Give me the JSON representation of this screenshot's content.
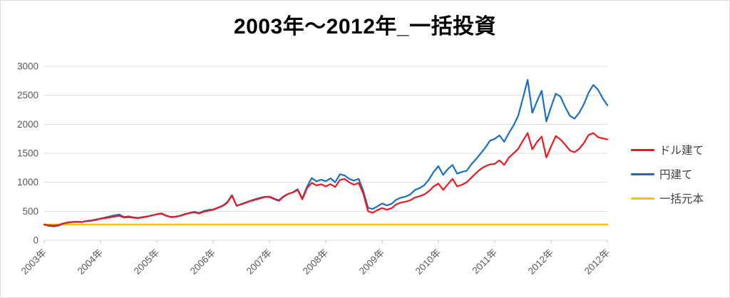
{
  "chart_data": {
    "type": "line",
    "title": "2003年～2012年_一括投資",
    "x_description": "monthly values, Jan 2003 - Dec 2012",
    "y_axis": {
      "ticks": [
        0,
        500,
        1000,
        1500,
        2000,
        2500,
        3000
      ],
      "range": [
        0,
        3000
      ]
    },
    "x_axis": {
      "tick_labels": [
        "2003年",
        "2004年",
        "2005年",
        "2006年",
        "2007年",
        "2008年",
        "2009年",
        "2010年",
        "2011年",
        "2012年",
        "2012年"
      ]
    },
    "grid": "horizontal",
    "legend": {
      "position": "right"
    },
    "colors": {
      "gridline": "#d9d9d9",
      "tick": "#bfbfbf",
      "axis_text": "#595959",
      "title_text": "#000000",
      "legend_text": "#404040"
    },
    "series": [
      {
        "name": "ドル建て",
        "color": "#ea1a20",
        "width": 2.2,
        "values": [
          270,
          258,
          252,
          262,
          290,
          308,
          315,
          320,
          312,
          330,
          336,
          350,
          370,
          382,
          395,
          408,
          420,
          392,
          400,
          388,
          380,
          395,
          408,
          428,
          450,
          462,
          425,
          398,
          403,
          420,
          448,
          468,
          482,
          462,
          492,
          512,
          525,
          558,
          590,
          648,
          768,
          598,
          618,
          648,
          678,
          700,
          722,
          744,
          752,
          718,
          688,
          758,
          802,
          825,
          868,
          705,
          900,
          990,
          945,
          965,
          930,
          968,
          918,
          1040,
          1058,
          998,
          958,
          988,
          798,
          498,
          474,
          520,
          555,
          528,
          552,
          618,
          650,
          665,
          690,
          738,
          760,
          790,
          850,
          930,
          978,
          868,
          968,
          1058,
          928,
          958,
          998,
          1078,
          1158,
          1228,
          1278,
          1308,
          1318,
          1378,
          1298,
          1428,
          1498,
          1578,
          1718,
          1848,
          1568,
          1698,
          1788,
          1428,
          1618,
          1798,
          1738,
          1648,
          1548,
          1518,
          1578,
          1678,
          1818,
          1848,
          1778,
          1758,
          1738
        ]
      },
      {
        "name": "円建て",
        "color": "#1a6fc0",
        "width": 2.2,
        "values": [
          270,
          246,
          240,
          250,
          285,
          303,
          313,
          318,
          315,
          335,
          342,
          356,
          376,
          392,
          412,
          430,
          445,
          402,
          412,
          394,
          386,
          400,
          413,
          432,
          446,
          456,
          420,
          402,
          408,
          426,
          452,
          472,
          490,
          470,
          504,
          522,
          530,
          564,
          596,
          658,
          780,
          592,
          624,
          654,
          684,
          710,
          732,
          750,
          744,
          708,
          678,
          750,
          798,
          828,
          880,
          722,
          925,
          1075,
          1015,
          1045,
          1018,
          1068,
          1000,
          1138,
          1118,
          1058,
          1028,
          1058,
          848,
          558,
          538,
          585,
          635,
          600,
          628,
          700,
          735,
          752,
          790,
          868,
          900,
          950,
          1050,
          1180,
          1278,
          1128,
          1228,
          1298,
          1148,
          1178,
          1198,
          1308,
          1398,
          1498,
          1598,
          1718,
          1748,
          1808,
          1698,
          1848,
          1978,
          2148,
          2448,
          2768,
          2198,
          2398,
          2578,
          2048,
          2298,
          2528,
          2478,
          2298,
          2148,
          2098,
          2198,
          2348,
          2548,
          2678,
          2598,
          2448,
          2328
        ]
      },
      {
        "name": "一括元本",
        "color": "#ffc000",
        "width": 2.5,
        "constant_value": 270
      }
    ]
  }
}
